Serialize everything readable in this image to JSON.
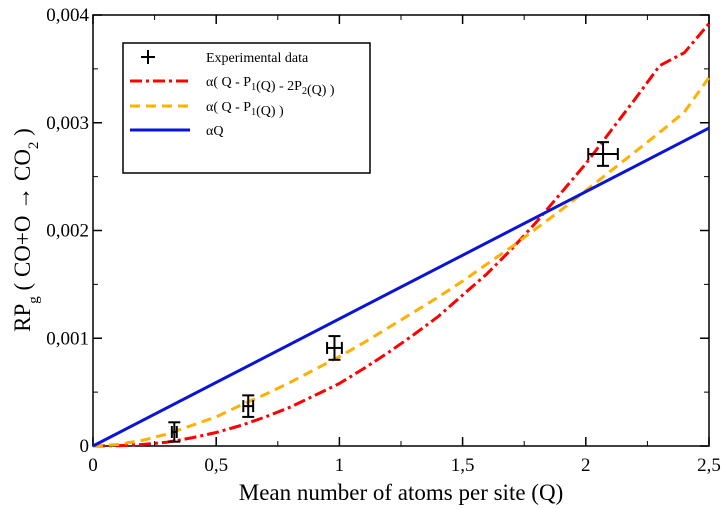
{
  "chart_data": {
    "type": "line",
    "xlabel": "Mean number of atoms per site (Q)",
    "ylabel": {
      "prefix": "RP",
      "prefix_sub": "g",
      "open": " ( CO+O ",
      "arrow": "→",
      "product": " CO",
      "product_sub": "2",
      "close": " )"
    },
    "xlim": [
      0,
      2.5
    ],
    "ylim": [
      0,
      0.004
    ],
    "x_ticks": [
      0,
      0.5,
      1,
      1.5,
      2,
      2.5
    ],
    "x_tick_labels": [
      "0",
      "0,5",
      "1",
      "1,5",
      "2",
      "2,5"
    ],
    "y_ticks": [
      0,
      0.001,
      0.002,
      0.003,
      0.004
    ],
    "y_tick_labels": [
      "0",
      "0,001",
      "0,002",
      "0,003",
      "0,004"
    ],
    "grid": false,
    "legend_position": "top-left",
    "legend": [
      {
        "label": "Experimental data",
        "style": "marker"
      },
      {
        "label_parts": [
          [
            "α( Q - P",
            ""
          ],
          [
            "1",
            "sub"
          ],
          [
            "(Q) - 2P",
            ""
          ],
          [
            "2",
            "sub"
          ],
          [
            "(Q) )",
            ""
          ]
        ],
        "style": "dashdot",
        "color": "#ff0000"
      },
      {
        "label_parts": [
          [
            "α( Q - P",
            ""
          ],
          [
            "1",
            "sub"
          ],
          [
            "(Q) )",
            ""
          ]
        ],
        "style": "dashed",
        "color": "#ffb000"
      },
      {
        "label_parts": [
          [
            "αQ",
            ""
          ]
        ],
        "style": "solid",
        "color": "#0a14d8"
      }
    ],
    "series": [
      {
        "id": "red",
        "style": "dashdot",
        "color": "#ff0000",
        "x": [
          0,
          0.1,
          0.2,
          0.3,
          0.4,
          0.5,
          0.6,
          0.7,
          0.8,
          0.9,
          1.0,
          1.1,
          1.2,
          1.3,
          1.4,
          1.5,
          1.6,
          1.7,
          1.8,
          1.9,
          2.0,
          2.1,
          2.2,
          2.3,
          2.4,
          2.5
        ],
        "y": [
          0,
          3e-06,
          1.4e-05,
          3.5e-05,
          7.5e-05,
          0.000125,
          0.00019,
          0.00027,
          0.00036,
          0.00047,
          0.00058,
          0.00072,
          0.00087,
          0.00103,
          0.0012,
          0.0014,
          0.0016,
          0.00183,
          0.00208,
          0.00235,
          0.00262,
          0.00292,
          0.00322,
          0.00353,
          0.00365,
          0.00392
        ]
      },
      {
        "id": "orange",
        "style": "dashed",
        "color": "#ffb000",
        "x": [
          0,
          0.1,
          0.2,
          0.3,
          0.4,
          0.5,
          0.6,
          0.7,
          0.8,
          0.9,
          1.0,
          1.1,
          1.2,
          1.3,
          1.4,
          1.5,
          1.6,
          1.7,
          1.8,
          1.9,
          2.0,
          2.1,
          2.2,
          2.3,
          2.4,
          2.5
        ],
        "y": [
          0,
          1.4e-05,
          5.2e-05,
          0.00011,
          0.00019,
          0.00027,
          0.00038,
          0.00048,
          0.00059,
          0.00071,
          0.00083,
          0.00096,
          0.0011,
          0.00124,
          0.00138,
          0.00153,
          0.00169,
          0.00185,
          0.00202,
          0.00219,
          0.00237,
          0.00255,
          0.00273,
          0.00291,
          0.0031,
          0.00342
        ]
      },
      {
        "id": "blue",
        "style": "solid",
        "color": "#0a14d8",
        "x": [
          0,
          2.5
        ],
        "y": [
          0,
          0.00295
        ]
      }
    ],
    "experimental_data": [
      {
        "x": 0.33,
        "y": 0.00013,
        "xerr": 0.01,
        "yerr": 9e-05
      },
      {
        "x": 0.63,
        "y": 0.00037,
        "xerr": 0.02,
        "yerr": 0.0001
      },
      {
        "x": 0.98,
        "y": 0.00091,
        "xerr": 0.03,
        "yerr": 0.00011
      },
      {
        "x": 2.07,
        "y": 0.00271,
        "xerr": 0.06,
        "yerr": 0.00011
      }
    ]
  }
}
